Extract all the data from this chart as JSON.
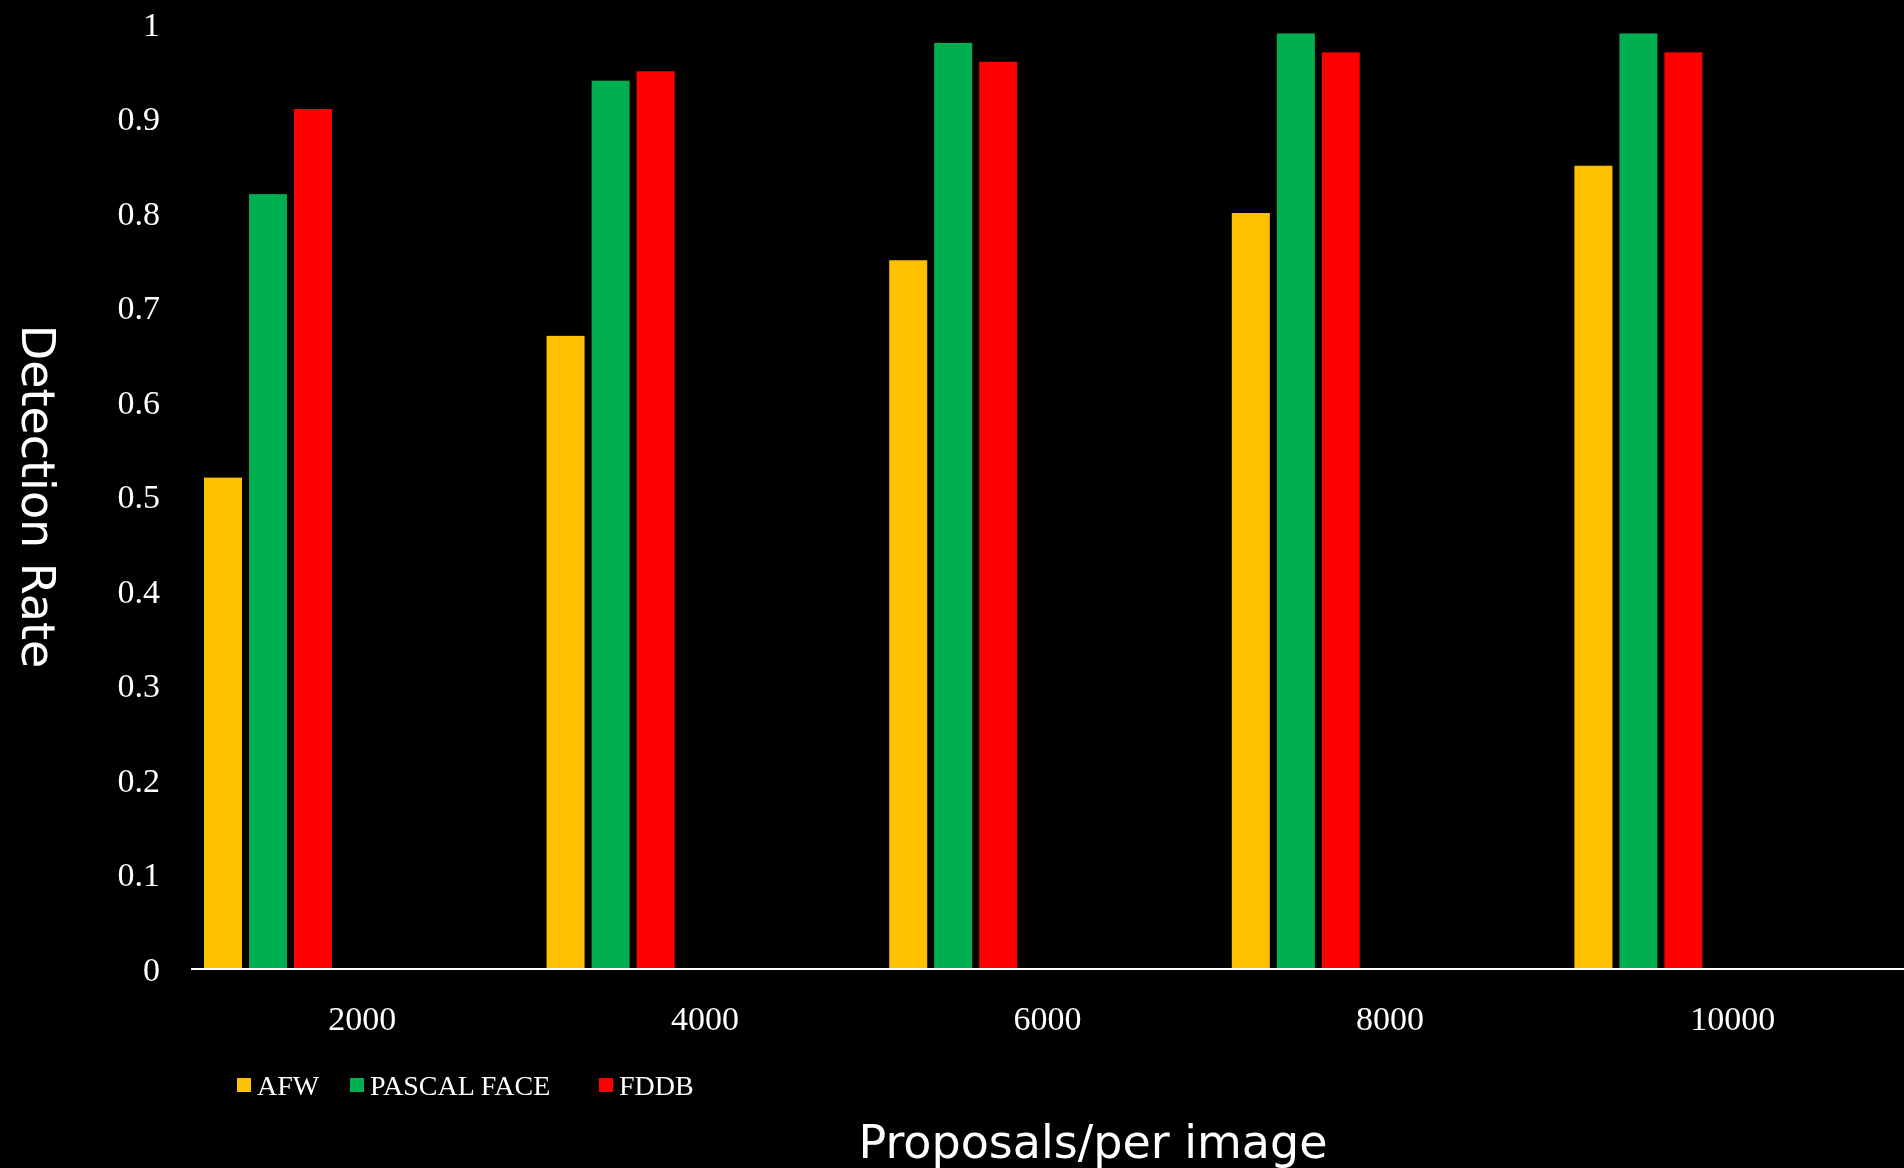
{
  "chart_data": {
    "type": "bar",
    "xlabel": "Proposals/per image",
    "ylabel": "Detection Rate",
    "categories": [
      "2000",
      "4000",
      "6000",
      "8000",
      "10000"
    ],
    "series": [
      {
        "name": "AFW",
        "color": "#ffc000",
        "values": [
          0.52,
          0.67,
          0.75,
          0.8,
          0.85
        ]
      },
      {
        "name": "PASCAL FACE",
        "color": "#00b050",
        "values": [
          0.82,
          0.94,
          0.98,
          0.99,
          0.99
        ]
      },
      {
        "name": "FDDB",
        "color": "#ff0000",
        "values": [
          0.91,
          0.95,
          0.96,
          0.97,
          0.97
        ]
      }
    ],
    "ylim": [
      0,
      1
    ],
    "yticks": [
      0,
      0.1,
      0.2,
      0.3,
      0.4,
      0.5,
      0.6,
      0.7,
      0.8,
      0.9,
      1
    ],
    "grid": false,
    "legend": "bottom left"
  }
}
